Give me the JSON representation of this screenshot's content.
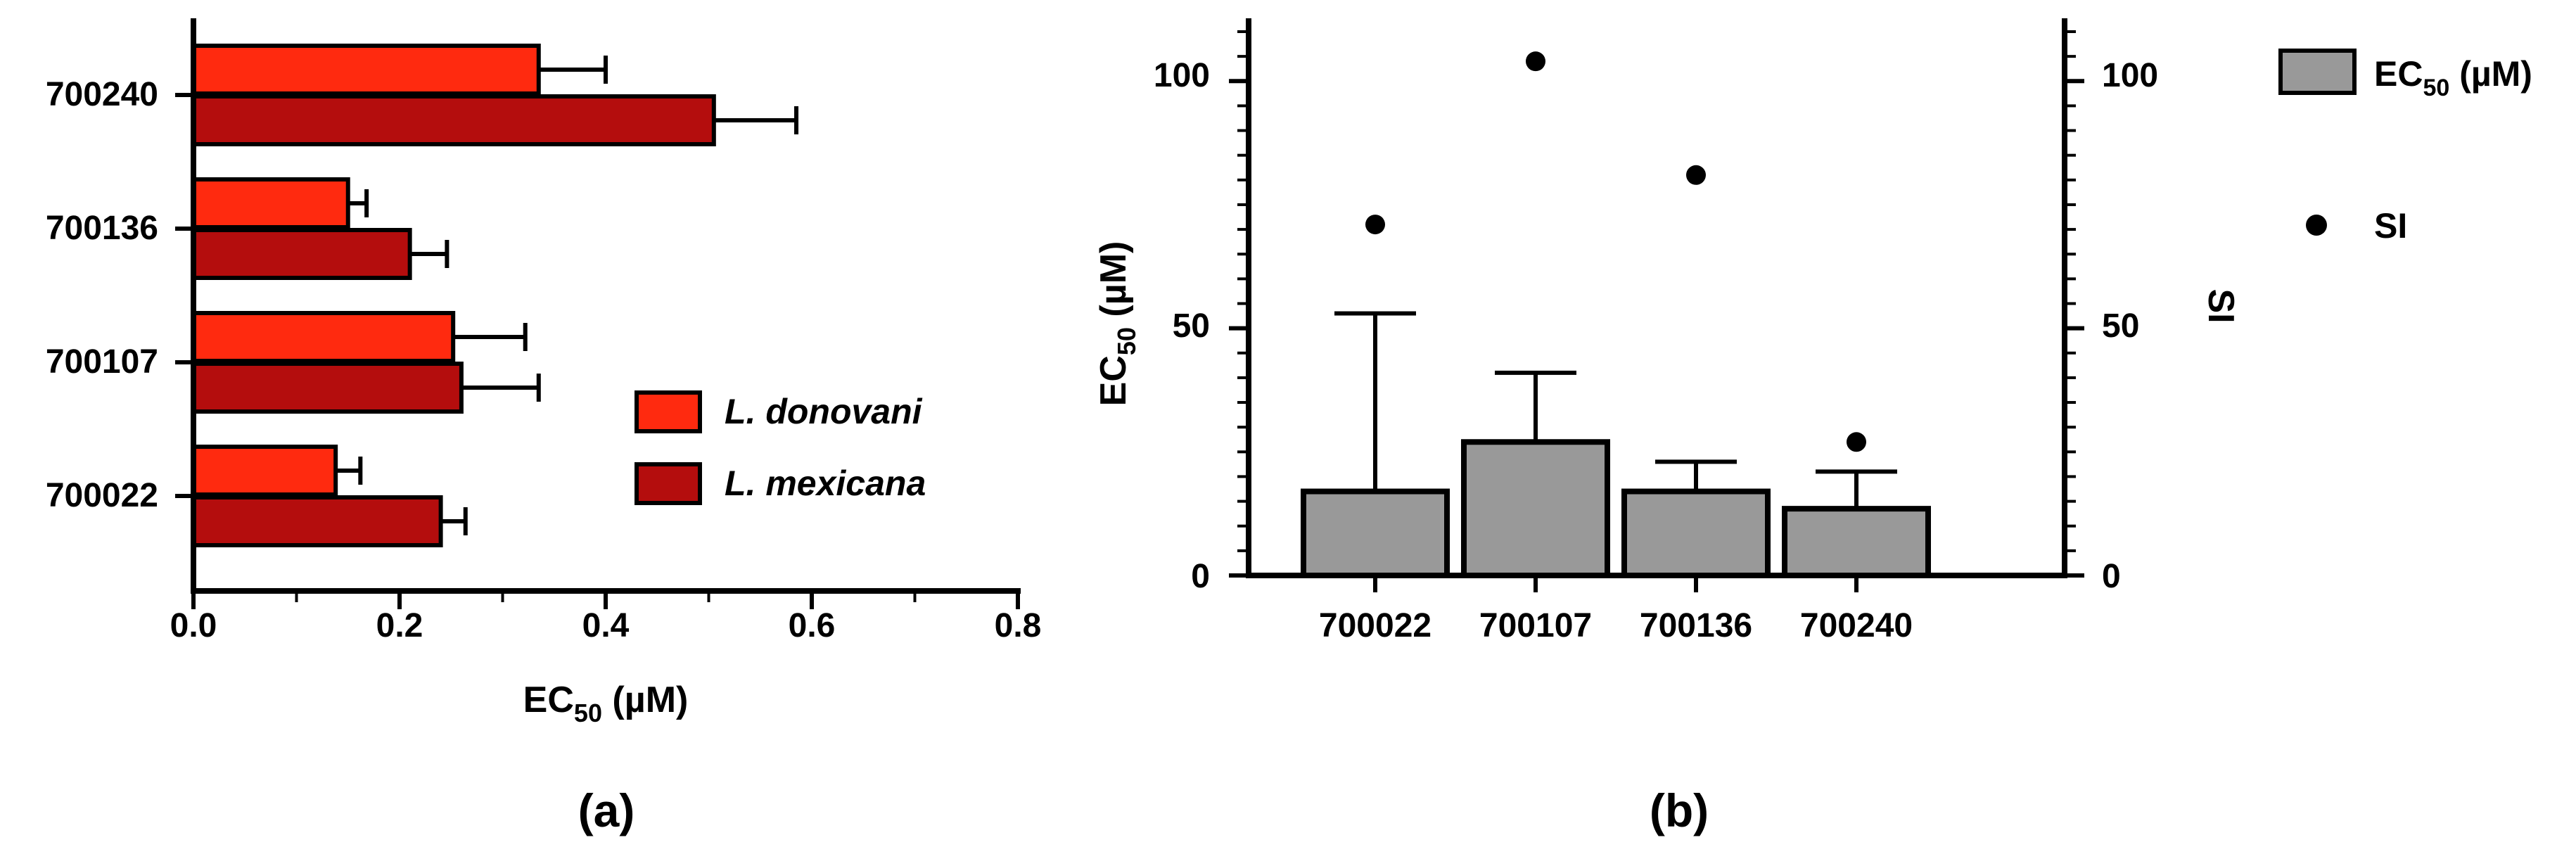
{
  "chart_data": [
    {
      "type": "bar",
      "orientation": "horizontal",
      "panel_label": "(a)",
      "categories": [
        "700240",
        "700136",
        "700107",
        "700022"
      ],
      "series": [
        {
          "name": "L. donovani",
          "color": "#ff2a0f",
          "values": [
            0.335,
            0.15,
            0.252,
            0.138
          ],
          "errors": [
            0.065,
            0.018,
            0.07,
            0.024
          ]
        },
        {
          "name": "L. mexicana",
          "color": "#b40d0d",
          "values": [
            0.505,
            0.21,
            0.26,
            0.24
          ],
          "errors": [
            0.08,
            0.036,
            0.075,
            0.024
          ]
        }
      ],
      "xlabel_main": "EC",
      "xlabel_sub": "50",
      "xlabel_unit": " (µM)",
      "xlim": [
        0,
        0.8
      ],
      "xticks": [
        "0.0",
        "0.2",
        "0.4",
        "0.6",
        "0.8"
      ],
      "legend": [
        "L. donovani",
        "L. mexicana"
      ],
      "legend_position": "right"
    },
    {
      "type": "bar+scatter",
      "panel_label": "(b)",
      "categories": [
        "700022",
        "700107",
        "700136",
        "700240"
      ],
      "bar_series": {
        "name": "EC50 (µM)",
        "color": "#999999",
        "values": [
          17,
          27,
          17,
          13.5
        ],
        "errors": [
          36,
          14,
          6,
          7.5
        ]
      },
      "scatter_series": {
        "name": "SI",
        "color": "#000000",
        "values": [
          71,
          104,
          81,
          27
        ]
      },
      "ylabel_left_main": "EC",
      "ylabel_left_sub": "50",
      "ylabel_left_unit": " (µM)",
      "ylabel_right": "SI",
      "ylim_left": [
        0,
        110
      ],
      "ylim_right": [
        0,
        110
      ],
      "yticks": [
        "0",
        "50",
        "100"
      ],
      "legend_bar_main": "EC",
      "legend_bar_sub": "50",
      "legend_bar_unit": " (µM)",
      "legend_scatter": "SI",
      "legend_position": "right"
    }
  ]
}
